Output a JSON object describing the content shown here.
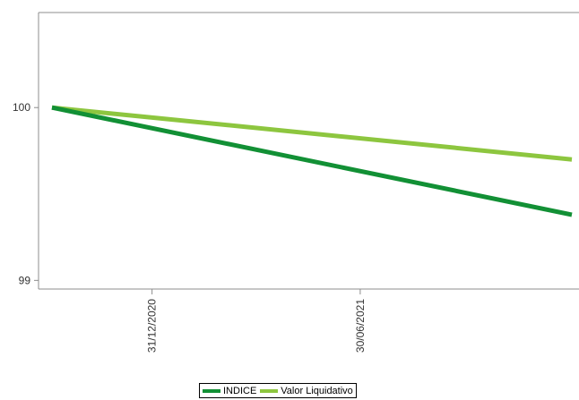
{
  "chart_data": {
    "type": "line",
    "title": "",
    "xlabel": "",
    "ylabel": "",
    "x_ticks": [
      "31/12/2020",
      "30/06/2021"
    ],
    "y_ticks": [
      99,
      100
    ],
    "ylim": [
      98.95,
      100.55
    ],
    "grid": false,
    "legend": "bottom-center",
    "series": [
      {
        "name": "INDICE",
        "color": "#129035",
        "points": [
          {
            "x": "2020-10-05",
            "y": 100.0
          },
          {
            "x": "2021-12-31",
            "y": 99.38
          }
        ]
      },
      {
        "name": "Valor Liquidativo",
        "color": "#8dc63f",
        "points": [
          {
            "x": "2020-10-05",
            "y": 100.0
          },
          {
            "x": "2021-12-31",
            "y": 99.7
          }
        ]
      }
    ]
  }
}
